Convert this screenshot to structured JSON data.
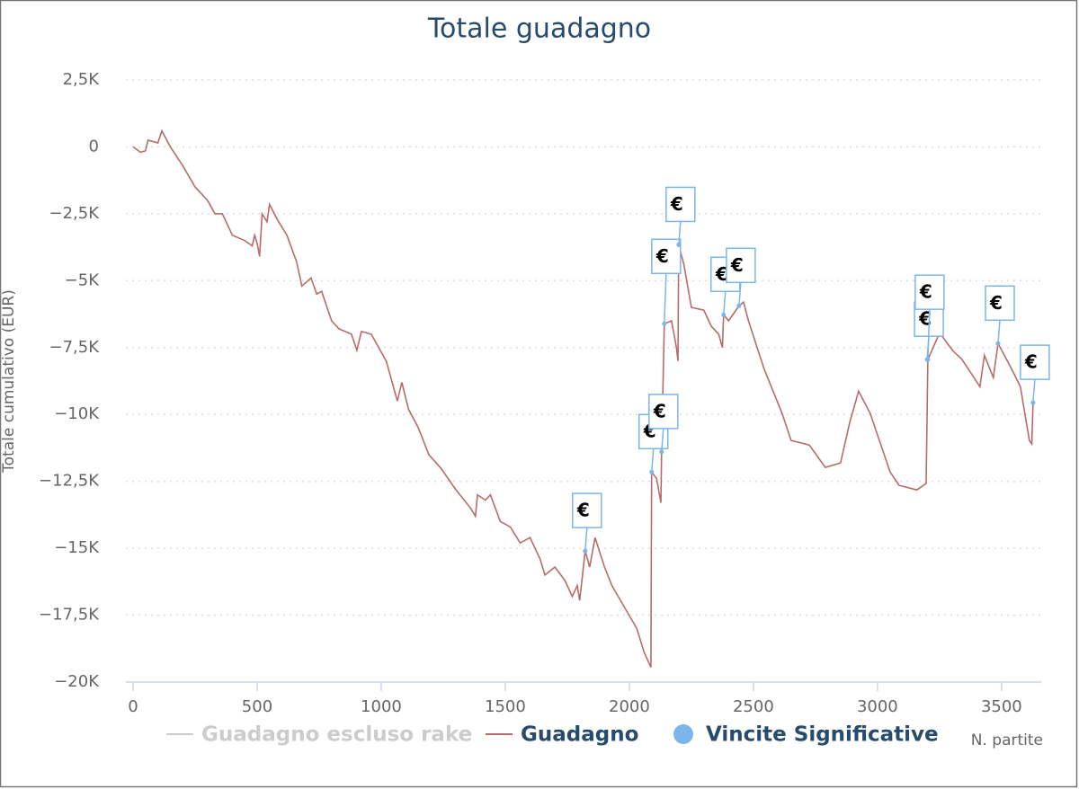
{
  "chart_data": {
    "type": "line",
    "title": "Totale guadagno",
    "y_label": "Totale cumulativo (EUR)",
    "x_label": "N. partite",
    "xlim": [
      0,
      3660
    ],
    "ylim": [
      -20000,
      2500
    ],
    "xticks": [
      0,
      500,
      1000,
      1500,
      2000,
      2500,
      3000,
      3500
    ],
    "yticks": [
      {
        "value": 2500,
        "label": "2,5K"
      },
      0,
      {
        "value": -2500,
        "label": "−2,5K"
      },
      {
        "value": -5000,
        "label": "−5K"
      },
      {
        "value": -7500,
        "label": "−7,5K"
      },
      {
        "value": -10000,
        "label": "−10K"
      },
      {
        "value": -12500,
        "label": "−12,5K"
      },
      {
        "value": -15000,
        "label": "−15K"
      },
      {
        "value": -17500,
        "label": "−17,5K"
      },
      {
        "value": -20000,
        "label": "−20K"
      }
    ],
    "grid": true,
    "series": [
      {
        "name": "Guadagno escluso rake",
        "color": "#cccccc",
        "visible": false,
        "x": [],
        "values": []
      },
      {
        "name": "Guadagno",
        "color": "#b86b6b",
        "visible": true,
        "x": [
          0,
          30,
          50,
          60,
          100,
          116,
          150,
          200,
          250,
          300,
          330,
          360,
          400,
          450,
          480,
          490,
          500,
          510,
          520,
          540,
          550,
          580,
          620,
          659,
          680,
          717,
          740,
          760,
          800,
          830,
          880,
          902,
          920,
          960,
          990,
          1020,
          1050,
          1065,
          1083,
          1110,
          1150,
          1192,
          1240,
          1300,
          1360,
          1380,
          1388,
          1420,
          1440,
          1480,
          1520,
          1560,
          1600,
          1640,
          1660,
          1700,
          1740,
          1770,
          1790,
          1800,
          1822,
          1840,
          1862,
          1900,
          1930,
          1980,
          2030,
          2060,
          2087,
          2090,
          2110,
          2127,
          2130,
          2141,
          2170,
          2190,
          2196,
          2199,
          2220,
          2250,
          2300,
          2330,
          2360,
          2375,
          2380,
          2400,
          2442,
          2460,
          2480,
          2543,
          2616,
          2652,
          2725,
          2790,
          2851,
          2888,
          2924,
          2971,
          3051,
          3087,
          3159,
          3196,
          3203,
          3250,
          3304,
          3341,
          3413,
          3431,
          3467,
          3486,
          3540,
          3576,
          3612,
          3622,
          3627
        ],
        "values": [
          0,
          -200,
          -150,
          250,
          150,
          600,
          0,
          -700,
          -1500,
          -2000,
          -2500,
          -2500,
          -3300,
          -3500,
          -3700,
          -3300,
          -3600,
          -4100,
          -2500,
          -2800,
          -2150,
          -2700,
          -3300,
          -4300,
          -5200,
          -4900,
          -5500,
          -5400,
          -6500,
          -6800,
          -7000,
          -7600,
          -6900,
          -7000,
          -7500,
          -8000,
          -9000,
          -9500,
          -8800,
          -9800,
          -10500,
          -11500,
          -12000,
          -12800,
          -13500,
          -13800,
          -13000,
          -13200,
          -13000,
          -14000,
          -14200,
          -14800,
          -14600,
          -15400,
          -16000,
          -15700,
          -16200,
          -16800,
          -16400,
          -16950,
          -15100,
          -15700,
          -14600,
          -15700,
          -16400,
          -17200,
          -18000,
          -18900,
          -19450,
          -12150,
          -12400,
          -13300,
          -11400,
          -6610,
          -6500,
          -7500,
          -8000,
          -3660,
          -4400,
          -6000,
          -6100,
          -6700,
          -7000,
          -7500,
          -6275,
          -6500,
          -5940,
          -5800,
          -6500,
          -8300,
          -9970,
          -10970,
          -11140,
          -11980,
          -11810,
          -10300,
          -9130,
          -9970,
          -12150,
          -12650,
          -12820,
          -12580,
          -7950,
          -6950,
          -7620,
          -7950,
          -8960,
          -7790,
          -8620,
          -7350,
          -8290,
          -8960,
          -10970,
          -11100,
          -9560
        ]
      },
      {
        "name": "Vincite Significative",
        "type": "scatter",
        "color": "#7cb5ec",
        "visible": true,
        "flag": "€",
        "x": [
          1822,
          2090,
          2130,
          2141,
          2199,
          2380,
          2442,
          3200,
          3203,
          3486,
          3627
        ],
        "values": [
          -15100,
          -12150,
          -11400,
          -6610,
          -3660,
          -6275,
          -5940,
          -7950,
          -7950,
          -7350,
          -9560
        ]
      }
    ]
  }
}
